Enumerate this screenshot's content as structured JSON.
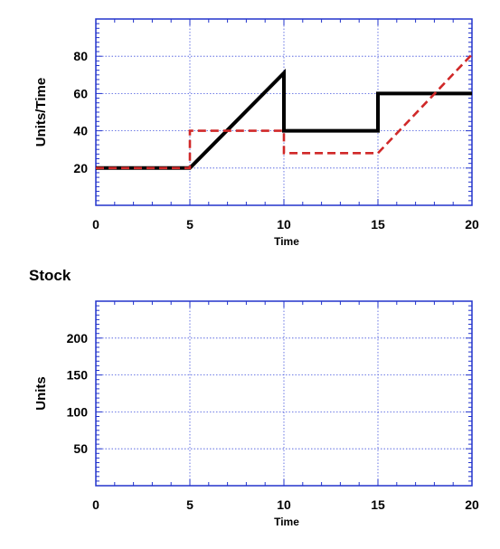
{
  "chart_data": [
    {
      "type": "line",
      "title": "",
      "xlabel": "Time",
      "ylabel": "Units/Time",
      "xlim": [
        0,
        20
      ],
      "ylim": [
        0,
        100
      ],
      "x_ticks": [
        0,
        5,
        10,
        15,
        20
      ],
      "y_ticks": [
        20,
        40,
        60,
        80
      ],
      "grid": true,
      "series": [
        {
          "style": "solid",
          "color": "#000000",
          "x": [
            0,
            5,
            10,
            10,
            15,
            15,
            20
          ],
          "y": [
            20,
            20,
            71,
            40,
            40,
            60,
            60
          ]
        },
        {
          "style": "dashed",
          "color": "#d02828",
          "x": [
            0,
            5,
            5,
            10,
            10,
            15,
            20
          ],
          "y": [
            20,
            20,
            40,
            40,
            28,
            28,
            81
          ]
        }
      ]
    },
    {
      "type": "line",
      "title": "Stock",
      "xlabel": "Time",
      "ylabel": "Units",
      "xlim": [
        0,
        20
      ],
      "ylim": [
        0,
        250
      ],
      "x_ticks": [
        0,
        5,
        10,
        15,
        20
      ],
      "y_ticks": [
        50,
        100,
        150,
        200
      ],
      "grid": true,
      "series": []
    }
  ]
}
